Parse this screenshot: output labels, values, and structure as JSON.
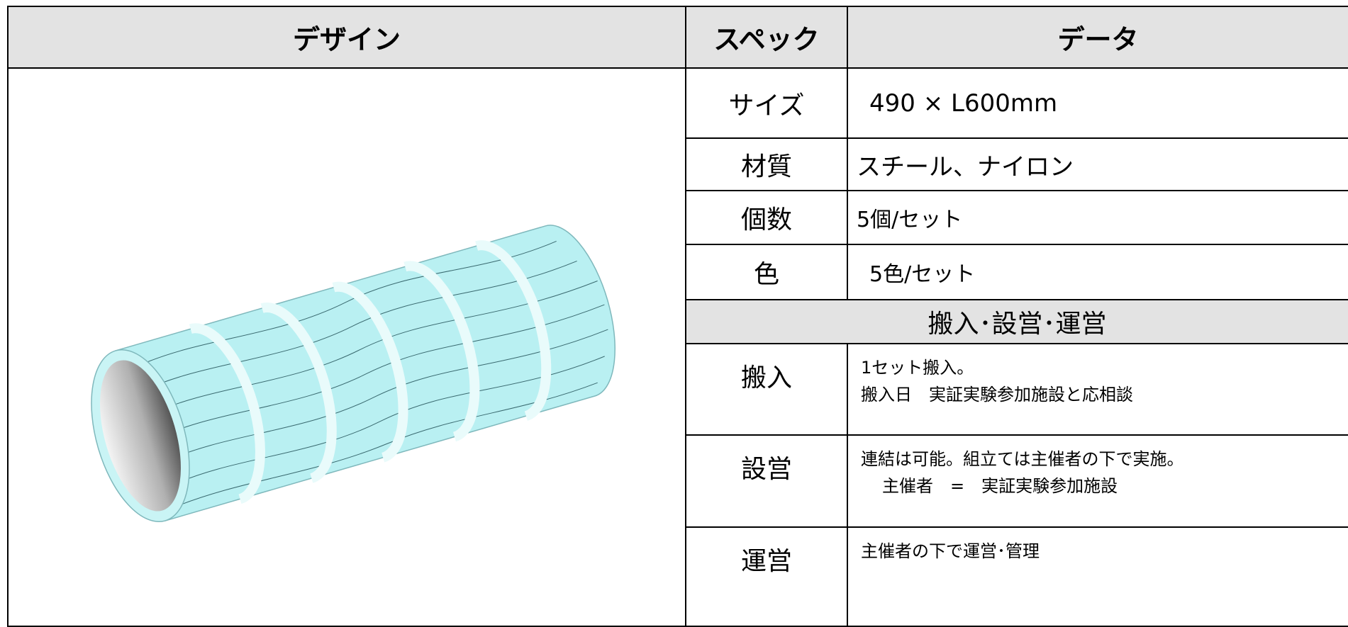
{
  "header": {
    "columns": [
      "デザイン",
      "スペック",
      "データ"
    ]
  },
  "specs": {
    "rows": [
      [
        "サイズ",
        "490 × L600mm"
      ],
      [
        "材質",
        "スチール、ナイロン"
      ],
      [
        "個数",
        "5個/セット"
      ],
      [
        "色",
        "5色/セット"
      ]
    ]
  },
  "section": {
    "title": "搬入･設営･運営"
  },
  "details": {
    "rows": [
      {
        "label": "搬入",
        "lines": [
          "1セット搬入。",
          "搬入日　実証実験参加施設と応相談"
        ]
      },
      {
        "label": "設営",
        "lines": [
          "連結は可能。組立ては主催者の下で実施。",
          "主催者　=　実証実験参加施設"
        ]
      },
      {
        "label": "運営",
        "lines": [
          "主催者の下で運営･管理"
        ]
      }
    ]
  }
}
